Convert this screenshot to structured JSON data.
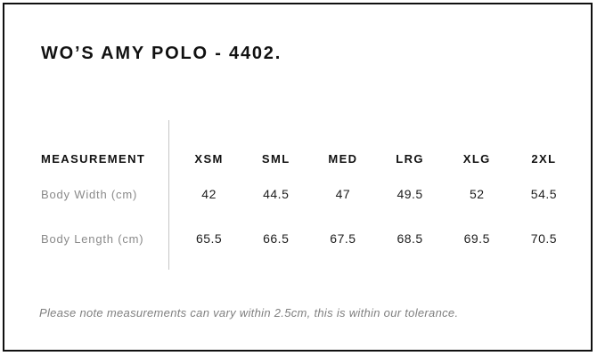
{
  "page": {
    "title": "WO’S AMY POLO - 4402.",
    "note": "Please note measurements can vary within 2.5cm, this is within our tolerance."
  },
  "size_chart": {
    "type": "table",
    "header_label": "MEASUREMENT",
    "columns": [
      "XSM",
      "SML",
      "MED",
      "LRG",
      "XLG",
      "2XL"
    ],
    "rows": [
      {
        "label": "Body Width (cm)",
        "values": [
          "42",
          "44.5",
          "47",
          "49.5",
          "52",
          "54.5"
        ]
      },
      {
        "label": "Body Length (cm)",
        "values": [
          "65.5",
          "66.5",
          "67.5",
          "68.5",
          "69.5",
          "70.5"
        ]
      }
    ]
  },
  "colors": {
    "frame_border": "#101010",
    "heading_text": "#111111",
    "value_text": "#1d1d1d",
    "row_label_text": "#8a8a8a",
    "note_text": "#7f7f7f",
    "divider": "#c6c6c6",
    "background": "#ffffff"
  }
}
